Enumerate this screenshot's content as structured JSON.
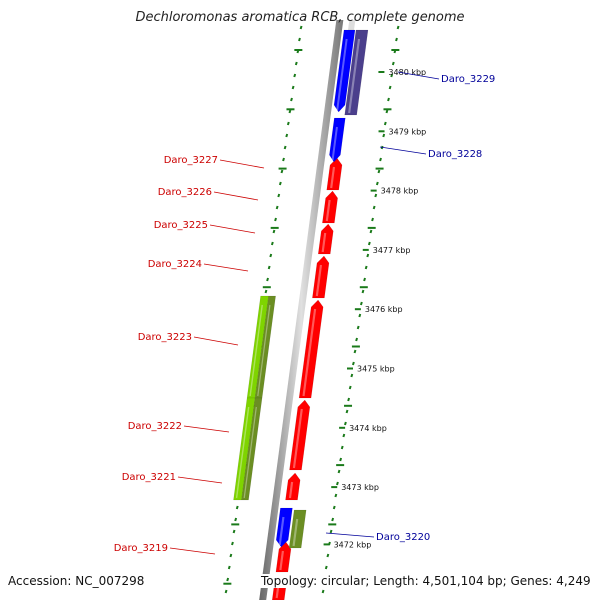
{
  "title": "Dechloromonas aromatica RCB, complete genome",
  "footer": {
    "accession": "Accession: NC_007298",
    "summary": "Topology: circular; Length: 4,501,104 bp; Genes: 4,249"
  },
  "colors": {
    "forward_gene": "#ff0000",
    "reverse_gene": "#0000ff",
    "reverse_gene_alt": "#4b3f8c",
    "rna_green": "#7fd400",
    "rna_olive": "#6b8e23",
    "forward_label": "#cc0000",
    "reverse_label": "#000099",
    "tick": "#1a7a1a",
    "backbone": "#999999"
  },
  "scale": {
    "unit": "kbp",
    "ticks": [
      3480,
      3479,
      3478,
      3477,
      3476,
      3475,
      3474,
      3473,
      3472
    ]
  },
  "genes_left": [
    {
      "name": "Daro_3227"
    },
    {
      "name": "Daro_3226"
    },
    {
      "name": "Daro_3225"
    },
    {
      "name": "Daro_3224"
    },
    {
      "name": "Daro_3223"
    },
    {
      "name": "Daro_3222"
    },
    {
      "name": "Daro_3221"
    },
    {
      "name": "Daro_3219"
    }
  ],
  "genes_right": [
    {
      "name": "Daro_3229"
    },
    {
      "name": "Daro_3228"
    },
    {
      "name": "Daro_3220"
    }
  ]
}
